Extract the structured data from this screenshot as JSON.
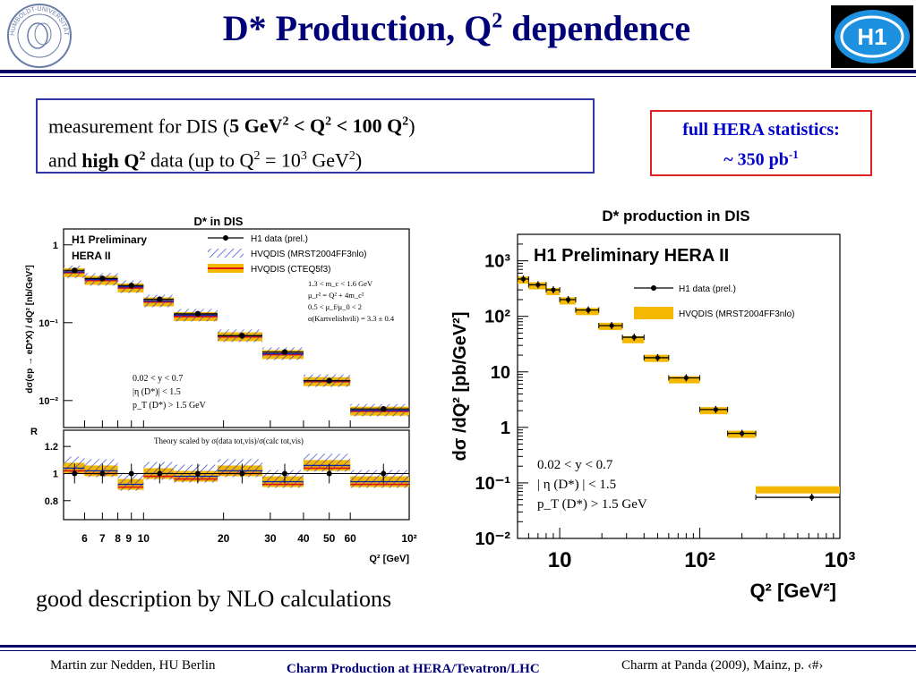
{
  "slide": {
    "title_main": "D* Production, Q",
    "title_sup": "2",
    "title_rest": " dependence",
    "logo_left_text": "HUMBOLDT-UNIVERSITÄT ZU BERLIN",
    "logo_right_text": "H1",
    "box_left": {
      "l1a": "measurement for DIS (",
      "l1b": "5 GeV",
      "l1c": "2",
      "l1d": " < Q",
      "l1e": "2",
      "l1f": " < 100 Q",
      "l1g": "2",
      "l1h": ")",
      "l2a": "and ",
      "l2b": "high Q",
      "l2c": "2",
      "l2d": " data (up to Q",
      "l2e": "2",
      "l2f": " = 10",
      "l2g": "3",
      "l2h": " GeV",
      "l2i": "2",
      "l2j": ")"
    },
    "box_right": {
      "l1": "full HERA statistics:",
      "l2a": "~ 350 pb",
      "l2b": "-1"
    },
    "bottom_note": "good description by NLO calculations",
    "footer": {
      "left": "Martin zur Nedden, HU Berlin",
      "middle": "Charm Production at HERA/Tevatron/LHC",
      "right": "Charm at Panda (2009), Mainz, p. ‹#›"
    }
  },
  "chart_data": [
    {
      "type": "scatter",
      "title": "D* in DIS",
      "ylabel": "dσ(ep → eD*X) / dQ² [nb/GeV²]",
      "ratio_ylabel": "R",
      "xlabel": "Q² [GeV]",
      "xscale": "log",
      "yscale": "log",
      "xlim": [
        5,
        100
      ],
      "ylim": [
        0.0045,
        1.6
      ],
      "ratio_ylim": [
        0.66,
        1.32
      ],
      "x_ticks": [
        "6",
        "7",
        "8",
        "9",
        "10",
        "20",
        "30",
        "40",
        "50",
        "60",
        "10²"
      ],
      "y_ticks": [
        "1",
        "10⁻¹",
        "10⁻²"
      ],
      "ratio_y_ticks": [
        "1.2",
        "1",
        "0.8"
      ],
      "label_h1": "H1 Preliminary",
      "label_hera": "HERA II",
      "legend": [
        "H1 data (prel.)",
        "HVQDIS (MRST2004FF3nlo)",
        "HVQDIS (CTEQ5f3)"
      ],
      "params": [
        "1.3 < m_c < 1.6 GeV",
        "μ_r² = Q² + 4m_c²",
        "0.5 < μ_f/μ_0 < 2",
        "α(Kartvelishvili) = 3.3 ± 0.4"
      ],
      "cuts": [
        "0.02 < y < 0.7",
        "|η (D*)| < 1.5",
        "p_T (D*) > 1.5 GeV"
      ],
      "ratio_note": "Theory scaled by σ(data tot,vis)/σ(calc tot,vis)",
      "bins": [
        [
          5,
          6
        ],
        [
          6,
          8
        ],
        [
          8,
          10
        ],
        [
          10,
          13
        ],
        [
          13,
          19
        ],
        [
          19,
          28
        ],
        [
          28,
          40
        ],
        [
          40,
          60
        ],
        [
          60,
          100
        ]
      ],
      "series": [
        {
          "name": "H1 data (prel.)",
          "x": [
            5.5,
            7,
            9,
            11.5,
            16,
            23.5,
            34,
            50,
            80
          ],
          "values": [
            0.47,
            0.37,
            0.3,
            0.2,
            0.13,
            0.068,
            0.042,
            0.018,
            0.0078
          ]
        },
        {
          "name": "HVQDIS (MRST2004FF3nlo)",
          "values": [
            0.45,
            0.36,
            0.29,
            0.19,
            0.125,
            0.068,
            0.04,
            0.018,
            0.0075
          ]
        },
        {
          "name": "HVQDIS (CTEQ5f3)",
          "values": [
            0.44,
            0.35,
            0.28,
            0.185,
            0.12,
            0.066,
            0.039,
            0.0175,
            0.0073
          ]
        }
      ],
      "ratio": [
        1.0,
        1.0,
        1.0,
        1.0,
        1.0,
        1.0,
        1.0,
        1.0,
        1.0
      ],
      "ratio_theory": [
        1.04,
        1.02,
        0.92,
        1.0,
        0.98,
        1.02,
        0.94,
        1.06,
        0.94
      ]
    },
    {
      "type": "scatter",
      "title": "D* production in DIS",
      "ylabel": "dσ /dQ² [pb/GeV²]",
      "xlabel": "Q² [GeV²]",
      "xscale": "log",
      "yscale": "log",
      "xlim": [
        5,
        1000
      ],
      "ylim": [
        0.01,
        3000
      ],
      "x_ticks": [
        "10",
        "10²",
        "10³"
      ],
      "y_ticks": [
        "10³",
        "10²",
        "10",
        "1",
        "10⁻¹",
        "10⁻²"
      ],
      "label": "H1 Preliminary HERA II",
      "legend": [
        "H1 data (prel.)",
        "HVQDIS (MRST2004FF3nlo)"
      ],
      "cuts": [
        "0.02 < y < 0.7",
        "| η (D*) | < 1.5",
        "p_T (D*) > 1.5 GeV"
      ],
      "bins": [
        [
          5,
          6
        ],
        [
          6,
          8
        ],
        [
          8,
          10
        ],
        [
          10,
          13
        ],
        [
          13,
          19
        ],
        [
          19,
          28
        ],
        [
          28,
          40
        ],
        [
          40,
          60
        ],
        [
          60,
          100
        ],
        [
          100,
          158
        ],
        [
          158,
          251
        ],
        [
          251,
          1000
        ]
      ],
      "series": [
        {
          "name": "H1 data (prel.)",
          "x": [
            5.5,
            7,
            9,
            11.5,
            16,
            23.5,
            34,
            50,
            80,
            130,
            200,
            630
          ],
          "values": [
            470,
            370,
            300,
            200,
            130,
            68,
            42,
            18,
            7.8,
            2.1,
            0.78,
            0.055
          ]
        },
        {
          "name": "HVQDIS (MRST2004FF3nlo)",
          "values": [
            450,
            355,
            280,
            190,
            122,
            66,
            38,
            17.5,
            7.2,
            2.0,
            0.75,
            0.075
          ]
        }
      ]
    }
  ]
}
